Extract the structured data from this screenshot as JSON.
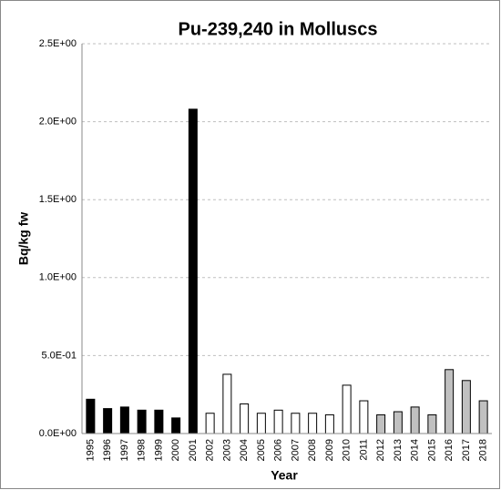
{
  "chart_data": {
    "type": "bar",
    "title": "Pu-239,240 in Molluscs",
    "x_label": "Year",
    "y_label": "Bq/kg fw",
    "categories": [
      "1995",
      "1996",
      "1997",
      "1998",
      "1999",
      "2000",
      "2001",
      "2002",
      "2003",
      "2004",
      "2005",
      "2006",
      "2007",
      "2008",
      "2009",
      "2010",
      "2011",
      "2012",
      "2013",
      "2014",
      "2015",
      "2016",
      "2017",
      "2018"
    ],
    "values": [
      0.22,
      0.16,
      0.17,
      0.15,
      0.15,
      0.1,
      2.08,
      0.13,
      0.38,
      0.19,
      0.13,
      0.15,
      0.13,
      0.13,
      0.12,
      0.31,
      0.21,
      0.12,
      0.14,
      0.17,
      0.12,
      0.41,
      0.34,
      0.21
    ],
    "colors": [
      "#000000",
      "#000000",
      "#000000",
      "#000000",
      "#000000",
      "#000000",
      "#000000",
      "#ffffff",
      "#ffffff",
      "#ffffff",
      "#ffffff",
      "#ffffff",
      "#ffffff",
      "#ffffff",
      "#ffffff",
      "#ffffff",
      "#ffffff",
      "#c0c0c0",
      "#c0c0c0",
      "#c0c0c0",
      "#c0c0c0",
      "#c0c0c0",
      "#c0c0c0",
      "#c0c0c0"
    ],
    "edgecolor": "#000000",
    "ylim": [
      0,
      2.5
    ],
    "yticks": [
      {
        "value": 0,
        "label": "0.0E+00"
      },
      {
        "value": 0.5,
        "label": "5.0E-01"
      },
      {
        "value": 1,
        "label": "1.0E+00"
      },
      {
        "value": 1.5,
        "label": "1.5E+00"
      },
      {
        "value": 2,
        "label": "2.0E+00"
      },
      {
        "value": 2.5,
        "label": "2.5E+00"
      }
    ],
    "grid": true
  }
}
